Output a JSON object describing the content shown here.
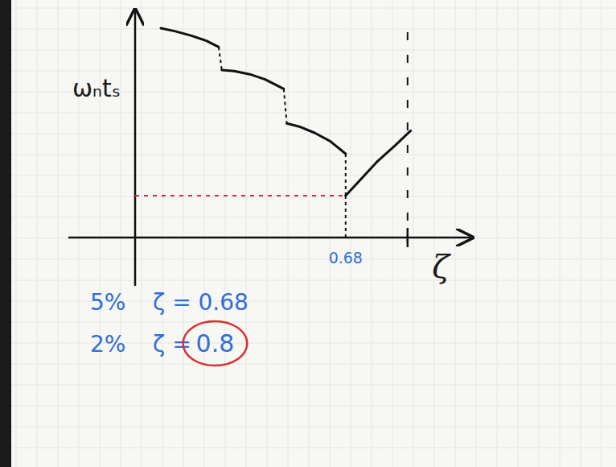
{
  "chart_data": {
    "type": "line",
    "x_label": "ζ",
    "y_label": "ωₙtₛ",
    "x": [
      0.083,
      0.13,
      0.18,
      0.23,
      0.27,
      null,
      0.28,
      0.32,
      0.37,
      0.42,
      0.48,
      null,
      0.49,
      0.53,
      0.58,
      0.63,
      0.68,
      null,
      0.68,
      0.73,
      0.78,
      0.84,
      0.89
    ],
    "series": [
      {
        "color": "#111111",
        "line_style": "solid",
        "values": [
          10.0,
          9.85,
          9.65,
          9.4,
          9.1,
          null,
          8.0,
          7.95,
          7.8,
          7.55,
          7.1,
          null,
          5.45,
          5.3,
          5.0,
          4.6,
          4.0,
          null,
          2.0,
          2.8,
          3.6,
          4.4,
          5.1
        ]
      }
    ],
    "xlim": [
      0,
      1
    ],
    "ylim": [
      0,
      10.5
    ],
    "xticks": [
      0.68
    ],
    "yticks": [],
    "tick_labels": "x",
    "grid": false,
    "dashed_x": 0.88,
    "annotations": [
      {
        "percent": "5%",
        "text": "ζ = 0.68"
      },
      {
        "percent": "2%",
        "text": "ζ = ",
        "circled": "0.8"
      }
    ]
  }
}
